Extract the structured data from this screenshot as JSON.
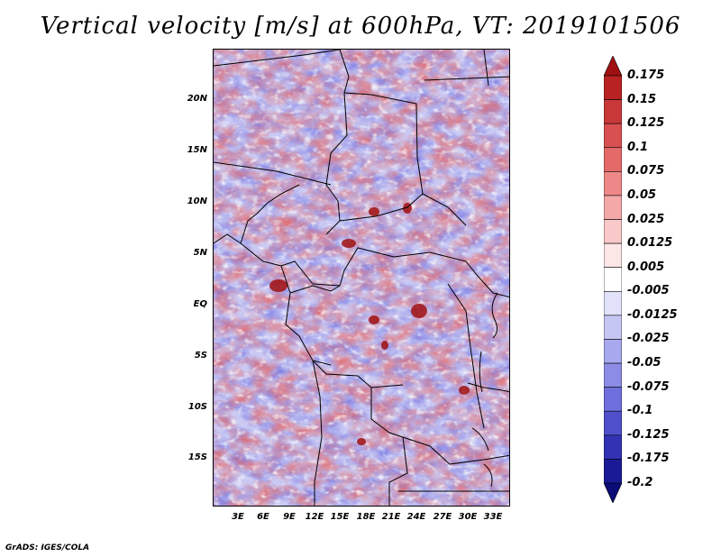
{
  "title": "Vertical velocity [m/s] at 600hPa, VT: 2019101506",
  "credit": "GrADS: IGES/COLA",
  "map": {
    "region": "Central Africa",
    "lat_labels": [
      "20N",
      "15N",
      "10N",
      "5N",
      "EQ",
      "5S",
      "10S",
      "15S"
    ],
    "lon_labels": [
      "3E",
      "6E",
      "9E",
      "12E",
      "15E",
      "18E",
      "21E",
      "24E",
      "27E",
      "30E",
      "33E"
    ]
  },
  "colorbar": {
    "levels": [
      "0.175",
      "0.15",
      "0.125",
      "0.1",
      "0.075",
      "0.05",
      "0.025",
      "0.0125",
      "0.005",
      "-0.005",
      "-0.0125",
      "-0.025",
      "-0.05",
      "-0.075",
      "-0.1",
      "-0.125",
      "-0.175",
      "-0.2"
    ],
    "colors": [
      "#a01010",
      "#b82222",
      "#c83838",
      "#d85050",
      "#e46a6a",
      "#ee8888",
      "#f4a8a8",
      "#f9c8c8",
      "#fde6e6",
      "#ffffff",
      "#e2e2fa",
      "#c6c6f4",
      "#a8a8ee",
      "#8c8ce6",
      "#6e6edc",
      "#5050cc",
      "#3232b4",
      "#1a1a96",
      "#0c0c78"
    ]
  }
}
